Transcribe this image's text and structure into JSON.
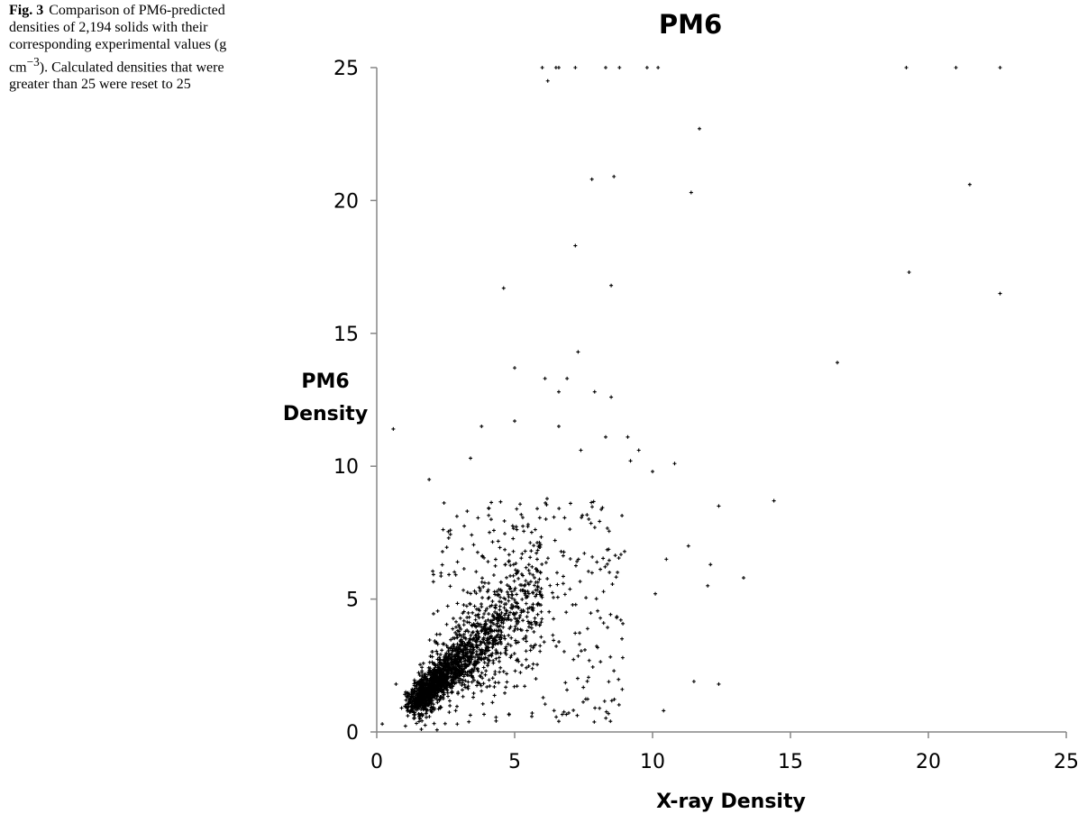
{
  "caption": {
    "fig_label": "Fig. 3",
    "text": "Comparison of PM6-predicted densities of 2,194 solids with their corresponding experimental values (g cm",
    "superscript": "−3",
    "text_after": "). Calculated densities that were greater than 25 were reset to 25"
  },
  "chart_data": {
    "type": "scatter",
    "title": "PM6",
    "xlabel": "X-ray Density",
    "ylabel": [
      "PM6",
      "Density"
    ],
    "xlim": [
      0,
      25
    ],
    "ylim": [
      0,
      25
    ],
    "x_ticks": [
      "0",
      "5",
      "10",
      "15",
      "20",
      "25"
    ],
    "y_ticks": [
      "0",
      "5",
      "10",
      "15",
      "20",
      "25"
    ],
    "grid": false,
    "legend": "none",
    "marker_color": "#000000",
    "outliers": [
      [
        6.0,
        25.0
      ],
      [
        6.2,
        24.5
      ],
      [
        6.5,
        25.0
      ],
      [
        6.6,
        25.0
      ],
      [
        7.2,
        25.0
      ],
      [
        8.3,
        25.0
      ],
      [
        8.8,
        25.0
      ],
      [
        9.8,
        25.0
      ],
      [
        10.2,
        25.0
      ],
      [
        19.2,
        25.0
      ],
      [
        21.0,
        25.0
      ],
      [
        22.6,
        25.0
      ],
      [
        11.7,
        22.7
      ],
      [
        7.8,
        20.8
      ],
      [
        8.6,
        20.9
      ],
      [
        11.4,
        20.3
      ],
      [
        21.5,
        20.6
      ],
      [
        7.2,
        18.3
      ],
      [
        4.6,
        16.7
      ],
      [
        8.5,
        16.8
      ],
      [
        19.3,
        17.3
      ],
      [
        22.6,
        16.5
      ],
      [
        7.3,
        14.3
      ],
      [
        16.7,
        13.9
      ],
      [
        5.0,
        13.7
      ],
      [
        6.1,
        13.3
      ],
      [
        6.9,
        13.3
      ],
      [
        6.6,
        12.8
      ],
      [
        7.9,
        12.8
      ],
      [
        8.5,
        12.6
      ],
      [
        0.6,
        11.4
      ],
      [
        3.8,
        11.5
      ],
      [
        5.0,
        11.7
      ],
      [
        6.6,
        11.5
      ],
      [
        7.4,
        10.6
      ],
      [
        8.3,
        11.1
      ],
      [
        9.1,
        11.1
      ],
      [
        9.5,
        10.6
      ],
      [
        9.2,
        10.2
      ],
      [
        10.0,
        9.8
      ],
      [
        10.8,
        10.1
      ],
      [
        3.4,
        10.3
      ],
      [
        1.9,
        9.5
      ],
      [
        12.4,
        8.5
      ],
      [
        14.4,
        8.7
      ],
      [
        11.3,
        7.0
      ],
      [
        10.5,
        6.5
      ],
      [
        12.1,
        6.3
      ],
      [
        12.0,
        5.5
      ],
      [
        13.3,
        5.8
      ],
      [
        10.1,
        5.2
      ],
      [
        8.7,
        4.3
      ],
      [
        8.6,
        2.3
      ],
      [
        11.5,
        1.9
      ],
      [
        12.4,
        1.8
      ],
      [
        10.4,
        0.8
      ],
      [
        6.6,
        0.4
      ],
      [
        0.2,
        0.3
      ],
      [
        0.7,
        1.8
      ],
      [
        0.9,
        0.9
      ]
    ],
    "dense_cluster": {
      "n_points": 2134,
      "description": "points concentrated along y = x for x in 1–5, with wider scatter up to x≈9, y≈9"
    }
  }
}
